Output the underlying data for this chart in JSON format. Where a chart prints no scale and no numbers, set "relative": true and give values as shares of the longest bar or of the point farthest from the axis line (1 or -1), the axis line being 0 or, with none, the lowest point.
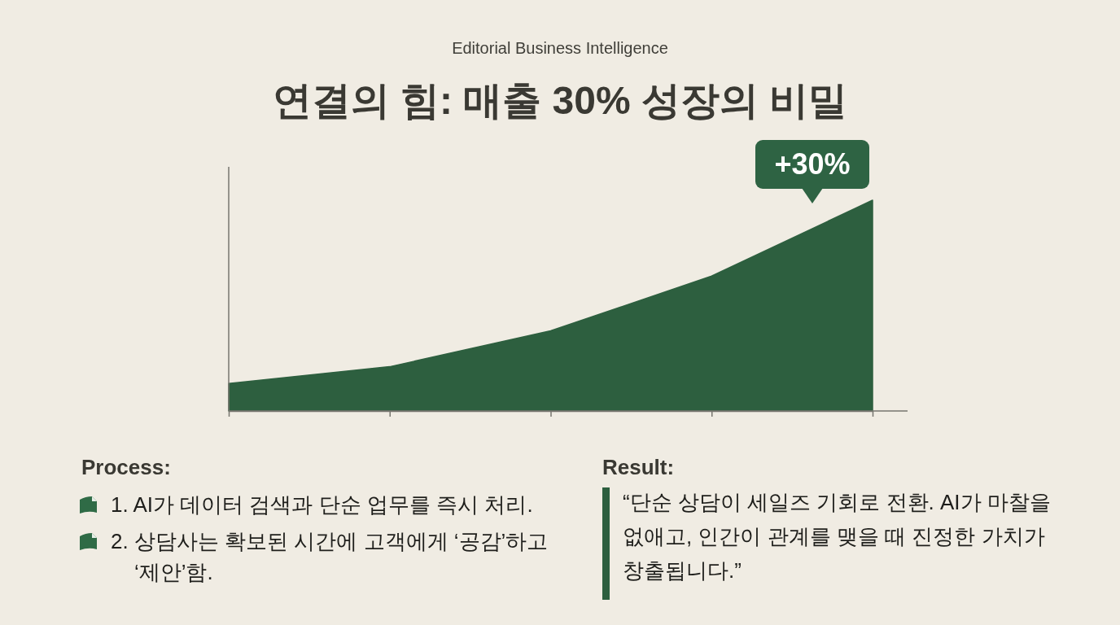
{
  "chart_data": [
    {
      "type": "area",
      "title": "연결의 힘: 매출 30% 성장의 비밀",
      "subtitle": "Editorial Business Intelligence",
      "categories": [
        null,
        null,
        null,
        null,
        null
      ],
      "values": [
        0.13,
        0.21,
        0.38,
        0.64,
        1
      ],
      "color": "#2d5f3f",
      "relative": true,
      "annotations": [
        "+30%"
      ]
    },
    {
      "type": "other",
      "title": "Process:",
      "annotations": [
        "1. AI가 데이터 검색과 단순 업무를 즉시 처리.",
        "2. 상담사는 확보된 시간에 고객에게 ‘공감’하고 ‘제안’함."
      ]
    },
    {
      "type": "other",
      "title": "Result:",
      "annotations": [
        "“단순 상담이 세일즈 기회로 전환. AI가 마찰을 없애고, 인간이 관계를 맺을 때 진정한 가치가 창출됩니다.”"
      ]
    }
  ]
}
